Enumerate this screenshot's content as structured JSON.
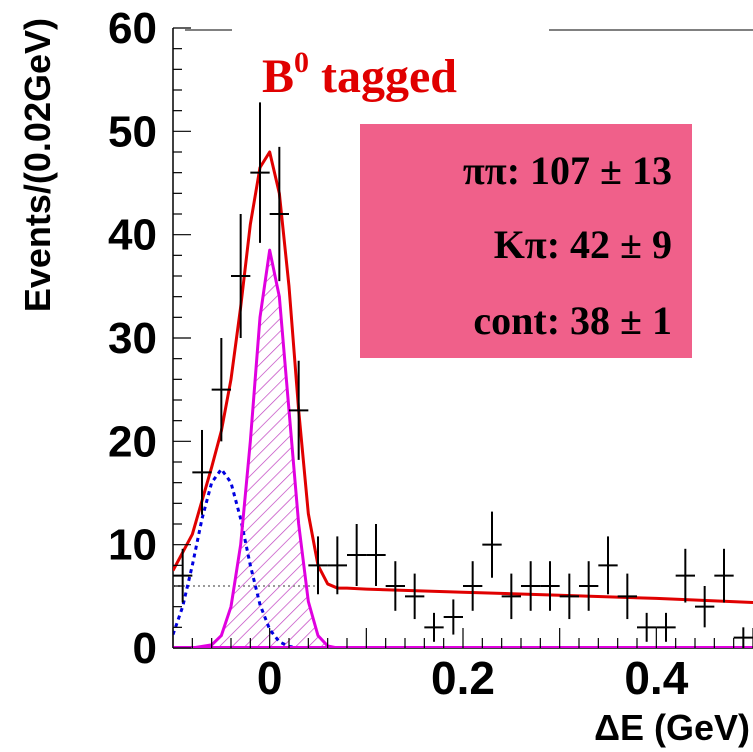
{
  "chart_data": {
    "type": "scatter",
    "title": "B0 tagged",
    "title_base": "B",
    "title_sup": "0",
    "title_rest": " tagged",
    "xlabel": "ΔE (GeV)",
    "ylabel": "Events/(0.02GeV)",
    "xlim": [
      -0.1,
      0.5
    ],
    "ylim": [
      0,
      60
    ],
    "x_ticks": [
      0,
      0.2,
      0.4
    ],
    "x_tick_labels": [
      "0",
      "0.2",
      "0.4"
    ],
    "y_ticks": [
      0,
      10,
      20,
      30,
      40,
      50,
      60
    ],
    "y_tick_labels": [
      "0",
      "10",
      "20",
      "30",
      "40",
      "50",
      "60"
    ],
    "grid": false,
    "legend_box": {
      "lines": [
        "ππ: 107 ± 13",
        "Kπ: 42 ± 9",
        "cont: 38 ± 1"
      ],
      "fill_color": "#f0608a"
    },
    "colors": {
      "data": "#000000",
      "total_fit": "#e00000",
      "signal_pipi": "#e000e0",
      "kpi": "#0000e0",
      "continuum": "#999999",
      "hatch": "#c040c0"
    },
    "series": [
      {
        "kind": "data_points",
        "x": [
          -0.09,
          -0.07,
          -0.05,
          -0.03,
          -0.01,
          0.01,
          0.03,
          0.05,
          0.07,
          0.09,
          0.11,
          0.13,
          0.15,
          0.17,
          0.19,
          0.21,
          0.23,
          0.25,
          0.27,
          0.29,
          0.31,
          0.33,
          0.35,
          0.37,
          0.39,
          0.41,
          0.43,
          0.45,
          0.47,
          0.49
        ],
        "y": [
          7,
          17,
          25,
          36,
          46,
          42,
          23,
          8,
          8,
          9,
          9,
          6,
          5,
          2,
          3,
          6,
          10,
          5,
          6,
          6,
          5,
          6,
          8,
          5,
          2,
          2,
          7,
          4,
          7,
          1
        ],
        "yerr": [
          2.6,
          4.1,
          5.0,
          6.0,
          6.8,
          6.5,
          4.8,
          2.8,
          2.8,
          3.0,
          3.0,
          2.4,
          2.2,
          1.4,
          1.7,
          2.4,
          3.2,
          2.2,
          2.4,
          2.4,
          2.2,
          2.4,
          2.8,
          2.2,
          1.4,
          1.4,
          2.6,
          2.0,
          2.6,
          1.0
        ],
        "xerr": 0.01
      },
      {
        "kind": "curve",
        "name_key": "total_fit",
        "x": [
          -0.1,
          -0.08,
          -0.06,
          -0.05,
          -0.04,
          -0.03,
          -0.02,
          -0.01,
          0.0,
          0.01,
          0.02,
          0.03,
          0.04,
          0.05,
          0.06,
          0.07,
          0.08,
          0.1,
          0.2,
          0.3,
          0.4,
          0.5
        ],
        "y": [
          7.5,
          11,
          17.5,
          21,
          26,
          33,
          41,
          46.5,
          48,
          44,
          35,
          23,
          13,
          8,
          6.2,
          5.8,
          5.8,
          5.7,
          5.4,
          5.1,
          4.8,
          4.4
        ]
      },
      {
        "kind": "curve",
        "name_key": "signal_pipi",
        "x": [
          -0.08,
          -0.06,
          -0.05,
          -0.04,
          -0.03,
          -0.02,
          -0.01,
          0.0,
          0.01,
          0.02,
          0.03,
          0.04,
          0.05,
          0.06,
          0.07,
          0.08,
          0.1,
          0.5
        ],
        "y": [
          0,
          0.3,
          1.2,
          4,
          10,
          20,
          32,
          38.5,
          34,
          23,
          12,
          4.5,
          1.2,
          0.2,
          0,
          0,
          0,
          0
        ]
      },
      {
        "kind": "curve",
        "name_key": "kpi",
        "x": [
          -0.1,
          -0.09,
          -0.08,
          -0.07,
          -0.06,
          -0.05,
          -0.04,
          -0.03,
          -0.02,
          -0.01,
          0.0,
          0.01,
          0.02,
          0.03,
          0.04,
          0.05
        ],
        "y": [
          1.3,
          4,
          8,
          12.5,
          16,
          17.3,
          16,
          12.5,
          8,
          4.2,
          1.8,
          0.6,
          0.15,
          0.03,
          0,
          0
        ]
      },
      {
        "kind": "curve",
        "name_key": "continuum",
        "x": [
          -0.1,
          0.05
        ],
        "y": [
          6.0,
          6.0
        ]
      }
    ]
  }
}
